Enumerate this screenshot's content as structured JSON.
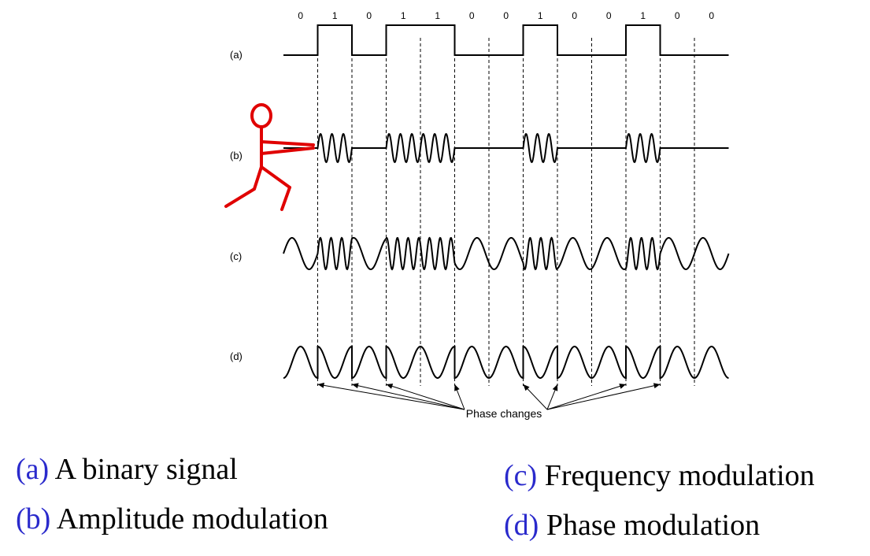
{
  "bits": [
    "0",
    "1",
    "0",
    "1",
    "1",
    "0",
    "0",
    "1",
    "0",
    "0",
    "1",
    "0",
    "0"
  ],
  "row_labels": {
    "a": "(a)",
    "b": "(b)",
    "c": "(c)",
    "d": "(d)"
  },
  "phase_label": "Phase changes",
  "captions": {
    "a": {
      "tag": "(a)",
      "text": "A binary signal"
    },
    "b": {
      "tag": "(b)",
      "text": "Amplitude modulation"
    },
    "c": {
      "tag": "(c)",
      "text": "Frequency modulation"
    },
    "d": {
      "tag": "(d)",
      "text": "Phase modulation"
    }
  },
  "colors": {
    "ink": "#000000",
    "stick_figure": "#e00000",
    "caption_tag": "#2a2acc"
  }
}
